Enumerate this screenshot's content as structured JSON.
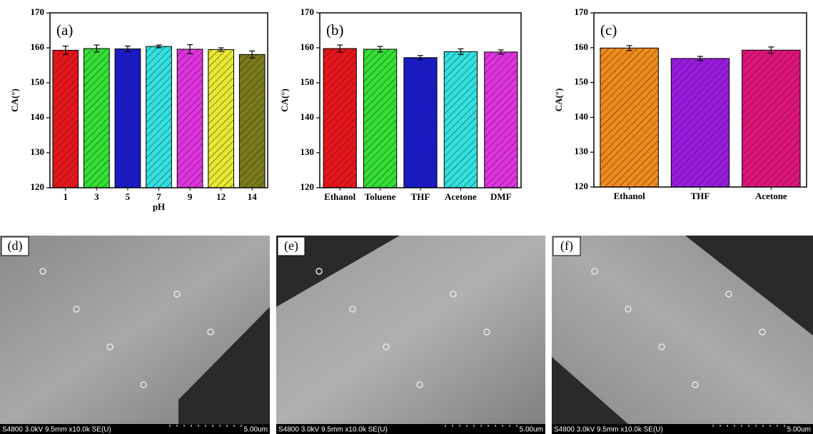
{
  "chart_data": [
    {
      "type": "bar",
      "annotation": "(a)",
      "ylabel": "CA(°)",
      "xlabel": "pH",
      "categories": [
        "1",
        "3",
        "5",
        "7",
        "9",
        "12",
        "14"
      ],
      "values": [
        159.3,
        159.8,
        159.7,
        160.4,
        159.6,
        159.5,
        158.1
      ],
      "errors": [
        1.2,
        1.0,
        0.8,
        0.4,
        1.3,
        0.5,
        1.0
      ],
      "colors": [
        "#e8141a",
        "#33e033",
        "#1a1acc",
        "#33e0e0",
        "#e033e0",
        "#e8e833",
        "#7a7a1a"
      ],
      "ylim": [
        120,
        170
      ],
      "yticks": [
        120,
        130,
        140,
        150,
        160,
        170
      ]
    },
    {
      "type": "bar",
      "annotation": "(b)",
      "ylabel": "CA(°)",
      "categories": [
        "Ethanol",
        "Toluene",
        "THF",
        "Acetone",
        "DMF"
      ],
      "values": [
        159.8,
        159.6,
        157.2,
        158.9,
        158.8
      ],
      "errors": [
        1.0,
        0.8,
        0.6,
        0.8,
        0.6
      ],
      "colors": [
        "#e8141a",
        "#33e033",
        "#1a1acc",
        "#33e0e0",
        "#e033e0"
      ],
      "ylim": [
        120,
        170
      ],
      "yticks": [
        120,
        130,
        140,
        150,
        160,
        170
      ]
    },
    {
      "type": "bar",
      "annotation": "(c)",
      "ylabel": "CA(°)",
      "categories": [
        "Ethanol",
        "THF",
        "Acetone"
      ],
      "values": [
        159.9,
        156.9,
        159.3
      ],
      "errors": [
        0.7,
        0.6,
        0.9
      ],
      "colors": [
        "#f08a1a",
        "#9a1ae0",
        "#e0147a"
      ],
      "ylim": [
        120,
        170
      ],
      "yticks": [
        120,
        130,
        140,
        150,
        160,
        170
      ]
    }
  ],
  "images": [
    {
      "label": "(d)",
      "caption": "S4800 3.0kV 9.5mm x10.0k SE(U)",
      "scale": "5.00um"
    },
    {
      "label": "(e)",
      "caption": "S4800 3.0kV 9.5mm x10.0k SE(U)",
      "scale": "5.00um"
    },
    {
      "label": "(f)",
      "caption": "S4800 3.0kV 9.5mm x10.0k SE(U)",
      "scale": "5.00um"
    }
  ]
}
